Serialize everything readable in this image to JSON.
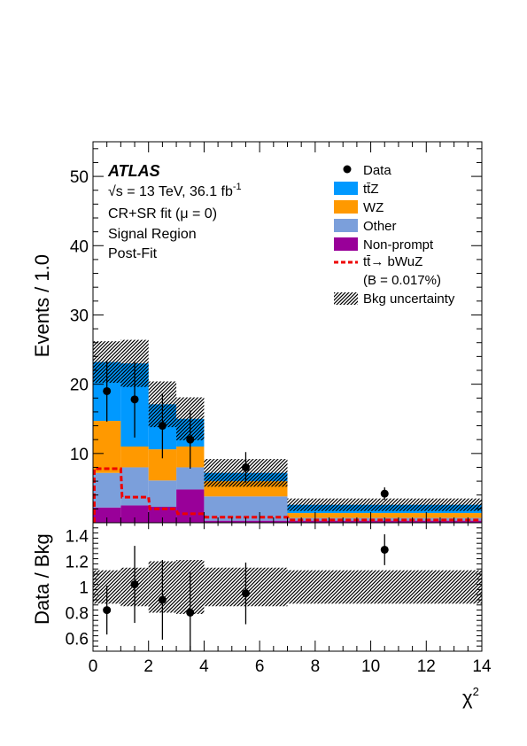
{
  "chart_data": {
    "type": "bar",
    "stacked": true,
    "x_bins": [
      0,
      1,
      2,
      3,
      4,
      7,
      14
    ],
    "bin_centers": [
      0.5,
      1.5,
      2.5,
      3.5,
      5.5,
      10.5
    ],
    "xlim": [
      0,
      14
    ],
    "ylim": [
      0,
      55
    ],
    "ratio_ylim": [
      0.5,
      1.5
    ],
    "xlabel": "χ",
    "xlabel_sup": "2",
    "ylabel": "Events / 1.0",
    "ratio_ylabel": "Data / Bkg",
    "x_ticks": [
      0,
      2,
      4,
      6,
      8,
      10,
      12,
      14
    ],
    "y_ticks": [
      10,
      20,
      30,
      40,
      50
    ],
    "ratio_ticks": [
      0.6,
      0.8,
      1,
      1.2,
      1.4
    ],
    "ratio_tick_labels": [
      "0.6",
      "0.8",
      "1",
      "1.2",
      "1.4"
    ],
    "series": [
      {
        "name": "Non-prompt",
        "color": "#990099",
        "values": [
          2.2,
          2.5,
          2.3,
          4.8,
          0.3,
          0.3
        ]
      },
      {
        "name": "Other",
        "color": "#7b9fdb",
        "values": [
          5.0,
          5.5,
          3.8,
          3.2,
          3.5,
          0.4
        ]
      },
      {
        "name": "WZ",
        "color": "#ff9900",
        "values": [
          7.5,
          3.0,
          4.5,
          3.0,
          2.2,
          0.7
        ]
      },
      {
        "name": "tt̄Z",
        "color": "#0099ff",
        "values": [
          8.5,
          12.0,
          6.5,
          4.0,
          1.2,
          1.2
        ]
      }
    ],
    "bkg_total": [
      23.2,
      23.0,
      17.1,
      15.0,
      7.2,
      2.6
    ],
    "bkg_unc": [
      3.0,
      3.4,
      3.3,
      3.1,
      2.0,
      0.9
    ],
    "signal": {
      "name": "tt̄→ bWuZ",
      "note": "(B = 0.017%)",
      "color": "#ee0000",
      "values": [
        7.8,
        3.7,
        2.0,
        1.3,
        0.8,
        0.4
      ]
    },
    "data": {
      "name": "Data",
      "y": [
        19.0,
        17.8,
        14.0,
        12.0,
        8.0,
        4.2
      ],
      "err": [
        4.4,
        5.5,
        4.7,
        4.2,
        2.2,
        0.9
      ]
    },
    "ratio": {
      "y": [
        0.82,
        1.02,
        0.9,
        0.8,
        0.95,
        1.29
      ],
      "err": [
        0.19,
        0.3,
        0.31,
        0.32,
        0.24,
        0.12
      ]
    },
    "ratio_unc": [
      0.13,
      0.15,
      0.2,
      0.21,
      0.15,
      0.13
    ],
    "uncertainty_label": "Bkg uncertainty",
    "annotations": {
      "experiment": "ATLAS",
      "energy_prefix": "√s = 13 TeV, 36.1 fb",
      "energy_sup": "-1",
      "line3": "CR+SR fit (μ = 0)",
      "line4": "Signal Region",
      "line5": "Post-Fit"
    },
    "legend_position": "top-right"
  }
}
